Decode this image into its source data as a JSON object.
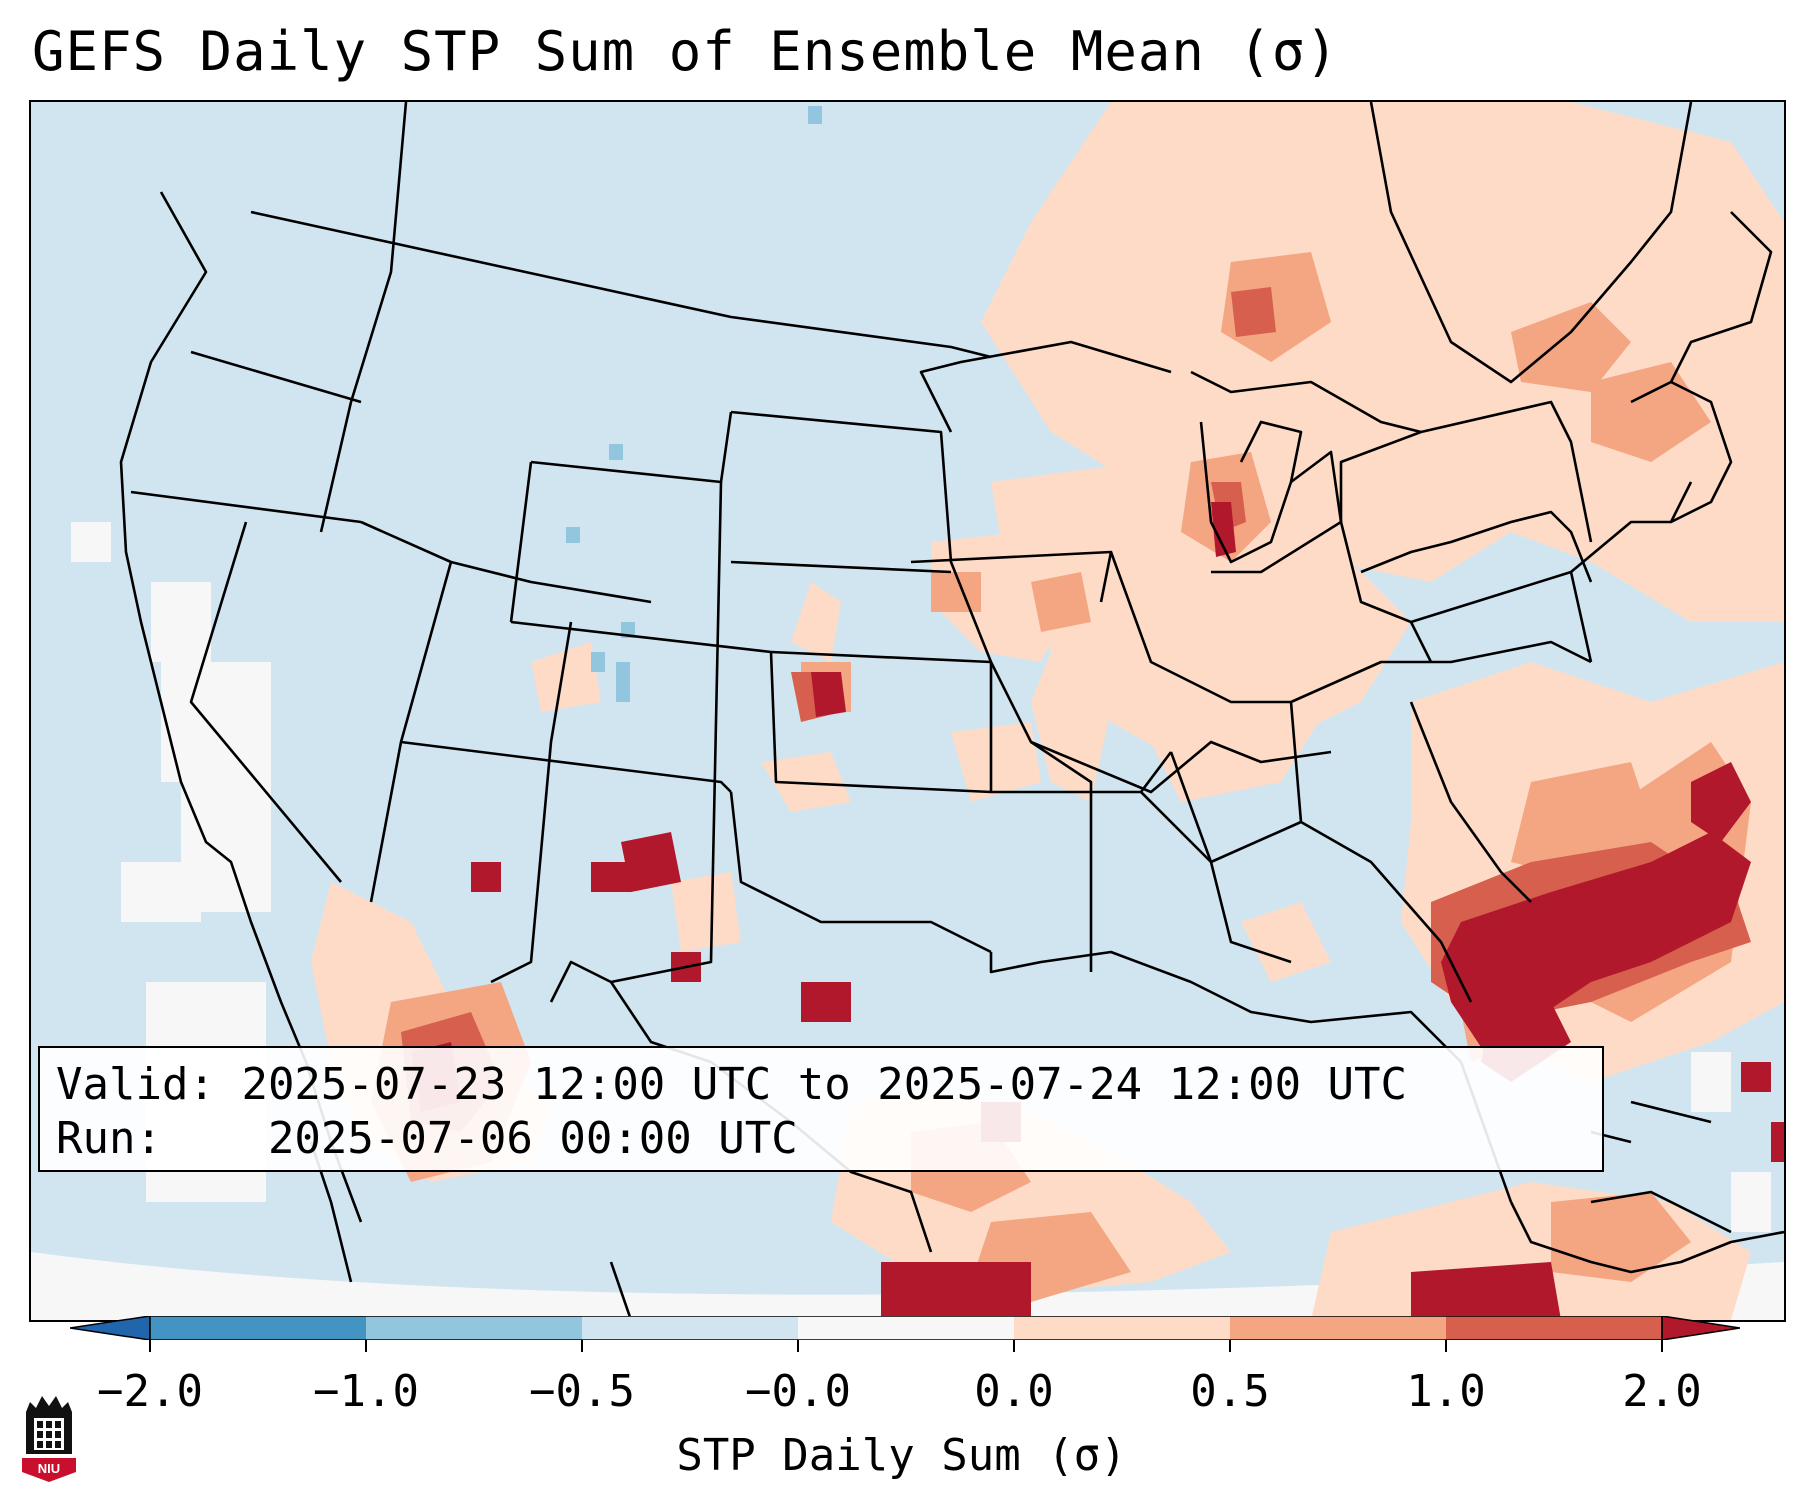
{
  "title": "GEFS Daily STP Sum of Ensemble Mean (σ)",
  "info": {
    "valid_label": "Valid:",
    "valid_value": "2025-07-23 12:00 UTC to 2025-07-24 12:00 UTC",
    "run_label": "Run:",
    "run_value": "2025-07-06 00:00 UTC"
  },
  "colorbar": {
    "label": "STP Daily Sum (σ)",
    "ticks": [
      "−2.0",
      "−1.0",
      "−0.5",
      "−0.0",
      "0.0",
      "0.5",
      "1.0",
      "2.0"
    ],
    "colors": [
      "#4393c3",
      "#92c5de",
      "#d1e5f0",
      "#f7f7f7",
      "#fddbc7",
      "#f4a582",
      "#d6604d",
      "#b2182b"
    ],
    "extend_low_color": "#2166ac",
    "extend_high_color": "#b2182b"
  },
  "colors": {
    "background_field": "#d1e5f0",
    "light_positive": "#fddbc7",
    "mid_positive": "#f4a582",
    "strong_positive": "#d6604d",
    "max_positive": "#b2182b",
    "negative": "#92c5de",
    "neutral": "#f7f7f7"
  },
  "logo": {
    "text": "NIU"
  }
}
